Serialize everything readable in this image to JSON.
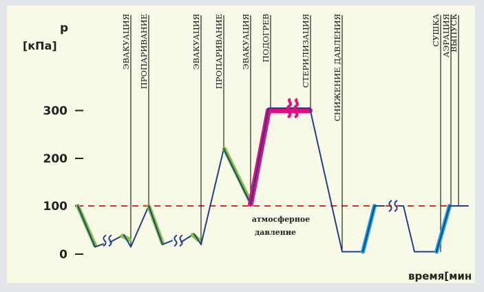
{
  "colors": {
    "panel": "#f9f9e7",
    "frame": "#e2e6ea",
    "curve": "#1f3f8a",
    "evacuation_segment": "#7fc23a",
    "sterilization_segment": "#e0117f",
    "drying_segment": "#1aa3e0",
    "atmosphere_line": "#e02a2a",
    "phase_line": "#222222"
  },
  "chart_data": {
    "type": "line",
    "y_label_top": "p",
    "y_unit": "[кПа]",
    "x_label": "время[мин",
    "yticks": [
      0,
      100,
      200,
      300
    ],
    "ylim": [
      0,
      330
    ],
    "grid": false,
    "x_scale": "none (phase sequence, breaks marked on curve)",
    "atmospheric_reference": {
      "y": 100,
      "style": "dashed",
      "label_line1": "атмосферное",
      "label_line2": "давление"
    },
    "phases": [
      "ЭВАКУАЦИЯ",
      "ПРОПАРИВАНИЕ",
      "ЭВАКУАЦИЯ",
      "ПРОПАРИВАНИЕ",
      "ЭВАКУАЦИЯ",
      "ПОДОГРЕВ",
      "СТЕРИЛИЗАЦИЯ",
      "СНИЖЕНИЕ ДАВЛЕНИЯ",
      "СУШКА",
      "АЭРАЦИЯ",
      "ВЫПУСК"
    ],
    "profile": [
      {
        "phase": "ЭВАКУАЦИЯ",
        "p_start": 100,
        "p_end": 15
      },
      {
        "phase": "ПРОПАРИВАНИЕ",
        "p_start": 15,
        "p_end": 100
      },
      {
        "phase": "ЭВАКУАЦИЯ",
        "p_start": 100,
        "p_end": 20
      },
      {
        "phase": "ПРОПАРИВАНИЕ",
        "p_start": 20,
        "p_end": 220
      },
      {
        "phase": "ЭВАКУАЦИЯ",
        "p_start": 220,
        "p_end": 105
      },
      {
        "phase": "ПОДОГРЕВ",
        "p_start": 105,
        "p_end": 305
      },
      {
        "phase": "СТЕРИЛИЗАЦИЯ",
        "p_start": 305,
        "p_end": 305
      },
      {
        "phase": "СНИЖЕНИЕ ДАВЛЕНИЯ",
        "p_start": 305,
        "p_end": 5
      },
      {
        "phase": "СУШКА",
        "p_start": 5,
        "p_end": 5
      },
      {
        "phase": "АЭРАЦИЯ",
        "p_start": 5,
        "p_end": 100
      },
      {
        "phase": "ВЫПУСК",
        "p_start": 100,
        "p_end": 100
      }
    ]
  }
}
